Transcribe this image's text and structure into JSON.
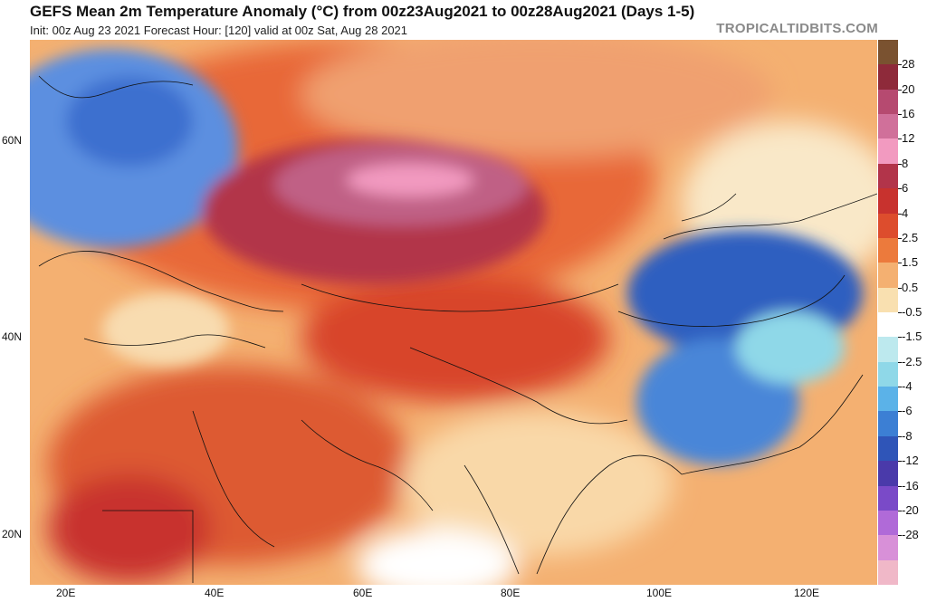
{
  "header": {
    "title": "GEFS Mean 2m Temperature Anomaly (°C) from 00z23Aug2021 to 00z28Aug2021 (Days 1-5)",
    "subtitle": "Init: 00z Aug 23 2021   Forecast Hour: [120]   valid at 00z Sat, Aug 28 2021",
    "brand": "TROPICALTIDBITS.COM"
  },
  "axes": {
    "lat_labels": [
      "60N",
      "40N",
      "20N"
    ],
    "lon_labels": [
      "20E",
      "40E",
      "60E",
      "80E",
      "100E",
      "120E"
    ]
  },
  "colorbar": {
    "labels": [
      "28",
      "20",
      "16",
      "12",
      "8",
      "6",
      "4",
      "2.5",
      "1.5",
      "0.5",
      "-0.5",
      "-1.5",
      "-2.5",
      "-4",
      "-6",
      "-8",
      "-12",
      "-16",
      "-20",
      "-28"
    ],
    "colors": [
      "#7a5230",
      "#8e2a3a",
      "#b64a70",
      "#d0709a",
      "#f29ac0",
      "#b2344a",
      "#c8322e",
      "#dd4d2d",
      "#ec7a3c",
      "#f4b071",
      "#f9e0b0",
      "#ffffff",
      "#bde9ee",
      "#8fd8e8",
      "#5bb2e8",
      "#3c7fd4",
      "#2f55b8",
      "#4a3aaa",
      "#7a4ac8",
      "#b06ad8",
      "#d890d8",
      "#f0b8c8"
    ]
  },
  "map": {
    "regions": [
      {
        "name": "scandinavia-cold",
        "color": "#5b8fe0"
      },
      {
        "name": "mongolia-cold",
        "color": "#2f55b8"
      },
      {
        "name": "china-cold",
        "color": "#4a86d8"
      },
      {
        "name": "kazakhstan-warm",
        "color": "#b64a70"
      },
      {
        "name": "siberia-hot",
        "color": "#d0709a"
      },
      {
        "name": "central-asia-warm",
        "color": "#c8322e"
      },
      {
        "name": "mideast-warm",
        "color": "#dd4d2d"
      }
    ]
  }
}
